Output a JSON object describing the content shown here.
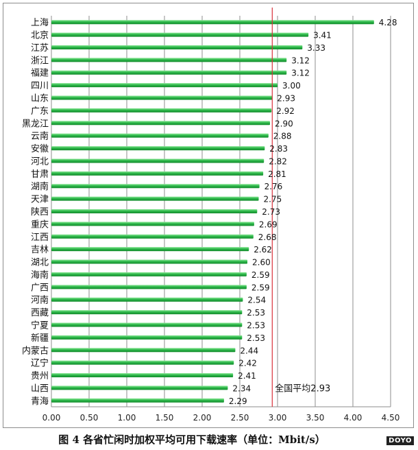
{
  "chart_data": {
    "type": "bar",
    "orientation": "horizontal",
    "categories": [
      "上海",
      "北京",
      "江苏",
      "浙江",
      "福建",
      "四川",
      "山东",
      "广东",
      "黑龙江",
      "云南",
      "安徽",
      "河北",
      "甘肃",
      "湖南",
      "天津",
      "陕西",
      "重庆",
      "江西",
      "吉林",
      "湖北",
      "海南",
      "广西",
      "河南",
      "西藏",
      "宁夏",
      "新疆",
      "内蒙古",
      "辽宁",
      "贵州",
      "山西",
      "青海"
    ],
    "values": [
      4.28,
      3.41,
      3.33,
      3.12,
      3.12,
      3.0,
      2.93,
      2.92,
      2.9,
      2.88,
      2.83,
      2.82,
      2.81,
      2.76,
      2.75,
      2.73,
      2.69,
      2.68,
      2.62,
      2.6,
      2.59,
      2.59,
      2.54,
      2.53,
      2.53,
      2.53,
      2.44,
      2.42,
      2.41,
      2.34,
      2.29
    ],
    "value_labels": [
      "4.28",
      "3.41",
      "3.33",
      "3.12",
      "3.12",
      "3.00",
      "2.93",
      "2.92",
      "2.90",
      "2.88",
      "2.83",
      "2.82",
      "2.81",
      "2.76",
      "2.75",
      "2.73",
      "2.69",
      "2.68",
      "2.62",
      "2.60",
      "2.59",
      "2.59",
      "2.54",
      "2.53",
      "2.53",
      "2.53",
      "2.44",
      "2.42",
      "2.41",
      "2.34",
      "2.29"
    ],
    "xlim": [
      0,
      4.5
    ],
    "xticks": [
      "0.00",
      "0.50",
      "1.00",
      "1.50",
      "2.00",
      "2.50",
      "3.00",
      "3.50",
      "4.00",
      "4.50"
    ],
    "grid": true,
    "reference_line": {
      "value": 2.93,
      "label": "全国平均2.93"
    },
    "title": "",
    "xlabel": "",
    "ylabel": "",
    "colors": {
      "bar": "#2db84a",
      "bar_highlight": "#8fe89a",
      "bar_shade": "#138a2c",
      "reference": "#d9303a",
      "grid": "#8c8c8c"
    }
  },
  "caption": "图 4  各省忙闲时加权平均可用下载速率（单位：Mbit/s）",
  "logo": "DOYO"
}
